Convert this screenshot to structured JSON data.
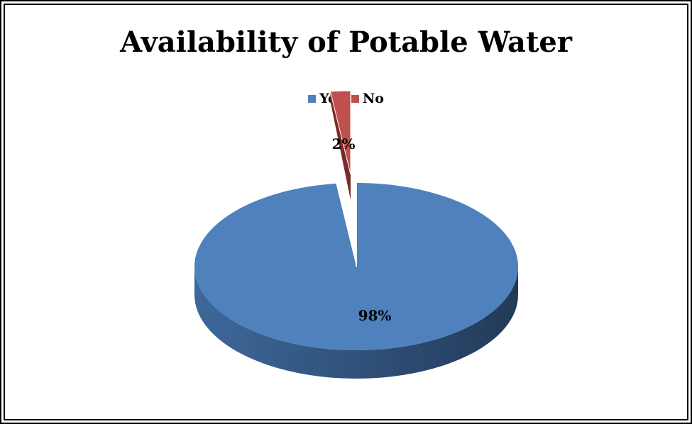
{
  "chart_data": {
    "type": "pie",
    "title": "Availability of Potable Water",
    "categories": [
      "Yes",
      "No"
    ],
    "values": [
      98,
      2
    ],
    "data_labels": [
      "98%",
      "2%"
    ],
    "colors": [
      "#4F81BD",
      "#C0504D"
    ],
    "legend_position": "top",
    "style": "3d-exploded"
  }
}
